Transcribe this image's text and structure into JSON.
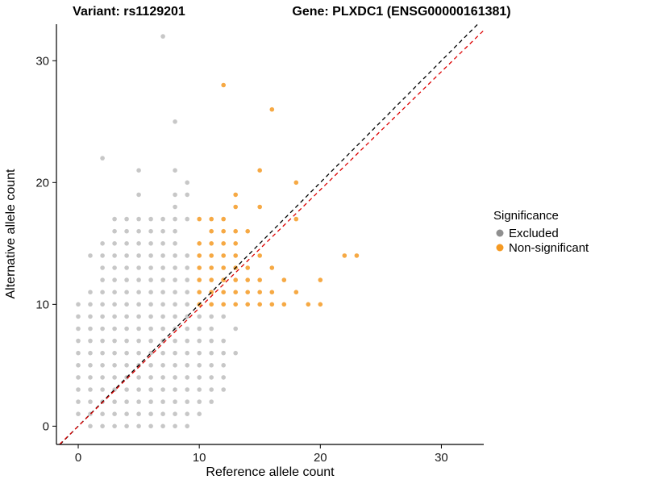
{
  "titles": {
    "variant": "Variant: rs1129201",
    "gene": "Gene: PLXDC1 (ENSG00000161381)"
  },
  "chart_data": {
    "type": "scatter",
    "xlabel": "Reference allele count",
    "ylabel": "Alternative allele count",
    "xlim": [
      -1.8,
      33.5
    ],
    "ylim": [
      -1.5,
      33.0
    ],
    "x_ticks": [
      0,
      10,
      20,
      30
    ],
    "y_ticks": [
      0,
      10,
      20,
      30
    ],
    "grid": false,
    "legend": {
      "title": "Significance",
      "position": "right",
      "items": [
        {
          "label": "Excluded",
          "color": "#8f8f8f"
        },
        {
          "label": "Non-significant",
          "color": "#f59a23"
        }
      ]
    },
    "lines": [
      {
        "name": "identity-line",
        "color": "#000000",
        "slope": 1.0,
        "intercept": 0,
        "dash": "5,4"
      },
      {
        "name": "fit-line",
        "color": "#dd0000",
        "slope": 0.97,
        "intercept": 0,
        "dash": "5,4"
      }
    ],
    "series": [
      {
        "name": "Excluded",
        "color": "#8f8f8f",
        "opacity": 0.5,
        "points": [
          [
            1,
            0
          ],
          [
            2,
            0
          ],
          [
            3,
            0
          ],
          [
            4,
            0
          ],
          [
            5,
            0
          ],
          [
            6,
            0
          ],
          [
            7,
            0
          ],
          [
            8,
            0
          ],
          [
            9,
            0
          ],
          [
            0,
            1
          ],
          [
            1,
            1
          ],
          [
            2,
            1
          ],
          [
            3,
            1
          ],
          [
            4,
            1
          ],
          [
            5,
            1
          ],
          [
            6,
            1
          ],
          [
            7,
            1
          ],
          [
            8,
            1
          ],
          [
            9,
            1
          ],
          [
            10,
            1
          ],
          [
            0,
            2
          ],
          [
            1,
            2
          ],
          [
            2,
            2
          ],
          [
            3,
            2
          ],
          [
            4,
            2
          ],
          [
            5,
            2
          ],
          [
            6,
            2
          ],
          [
            7,
            2
          ],
          [
            8,
            2
          ],
          [
            9,
            2
          ],
          [
            10,
            2
          ],
          [
            11,
            2
          ],
          [
            0,
            3
          ],
          [
            1,
            3
          ],
          [
            2,
            3
          ],
          [
            3,
            3
          ],
          [
            4,
            3
          ],
          [
            5,
            3
          ],
          [
            6,
            3
          ],
          [
            7,
            3
          ],
          [
            8,
            3
          ],
          [
            9,
            3
          ],
          [
            10,
            3
          ],
          [
            11,
            3
          ],
          [
            12,
            3
          ],
          [
            0,
            4
          ],
          [
            1,
            4
          ],
          [
            2,
            4
          ],
          [
            3,
            4
          ],
          [
            4,
            4
          ],
          [
            5,
            4
          ],
          [
            6,
            4
          ],
          [
            7,
            4
          ],
          [
            8,
            4
          ],
          [
            9,
            4
          ],
          [
            10,
            4
          ],
          [
            11,
            4
          ],
          [
            12,
            4
          ],
          [
            0,
            5
          ],
          [
            1,
            5
          ],
          [
            2,
            5
          ],
          [
            3,
            5
          ],
          [
            4,
            5
          ],
          [
            5,
            5
          ],
          [
            6,
            5
          ],
          [
            7,
            5
          ],
          [
            8,
            5
          ],
          [
            9,
            5
          ],
          [
            10,
            5
          ],
          [
            11,
            5
          ],
          [
            12,
            5
          ],
          [
            0,
            6
          ],
          [
            1,
            6
          ],
          [
            2,
            6
          ],
          [
            3,
            6
          ],
          [
            4,
            6
          ],
          [
            5,
            6
          ],
          [
            6,
            6
          ],
          [
            7,
            6
          ],
          [
            8,
            6
          ],
          [
            9,
            6
          ],
          [
            10,
            6
          ],
          [
            11,
            6
          ],
          [
            12,
            6
          ],
          [
            13,
            6
          ],
          [
            0,
            7
          ],
          [
            1,
            7
          ],
          [
            2,
            7
          ],
          [
            3,
            7
          ],
          [
            4,
            7
          ],
          [
            5,
            7
          ],
          [
            6,
            7
          ],
          [
            7,
            7
          ],
          [
            8,
            7
          ],
          [
            9,
            7
          ],
          [
            10,
            7
          ],
          [
            11,
            7
          ],
          [
            12,
            7
          ],
          [
            0,
            8
          ],
          [
            1,
            8
          ],
          [
            2,
            8
          ],
          [
            3,
            8
          ],
          [
            4,
            8
          ],
          [
            5,
            8
          ],
          [
            6,
            8
          ],
          [
            7,
            8
          ],
          [
            8,
            8
          ],
          [
            9,
            8
          ],
          [
            10,
            8
          ],
          [
            11,
            8
          ],
          [
            13,
            8
          ],
          [
            0,
            9
          ],
          [
            1,
            9
          ],
          [
            2,
            9
          ],
          [
            3,
            9
          ],
          [
            4,
            9
          ],
          [
            5,
            9
          ],
          [
            6,
            9
          ],
          [
            7,
            9
          ],
          [
            8,
            9
          ],
          [
            9,
            9
          ],
          [
            10,
            9
          ],
          [
            11,
            9
          ],
          [
            12,
            9
          ],
          [
            0,
            10
          ],
          [
            1,
            10
          ],
          [
            2,
            10
          ],
          [
            3,
            10
          ],
          [
            4,
            10
          ],
          [
            5,
            10
          ],
          [
            6,
            10
          ],
          [
            7,
            10
          ],
          [
            8,
            10
          ],
          [
            9,
            10
          ],
          [
            1,
            11
          ],
          [
            2,
            11
          ],
          [
            3,
            11
          ],
          [
            4,
            11
          ],
          [
            5,
            11
          ],
          [
            6,
            11
          ],
          [
            7,
            11
          ],
          [
            8,
            11
          ],
          [
            9,
            11
          ],
          [
            2,
            12
          ],
          [
            3,
            12
          ],
          [
            4,
            12
          ],
          [
            5,
            12
          ],
          [
            6,
            12
          ],
          [
            7,
            12
          ],
          [
            8,
            12
          ],
          [
            9,
            12
          ],
          [
            2,
            13
          ],
          [
            3,
            13
          ],
          [
            4,
            13
          ],
          [
            5,
            13
          ],
          [
            6,
            13
          ],
          [
            7,
            13
          ],
          [
            8,
            13
          ],
          [
            9,
            13
          ],
          [
            1,
            14
          ],
          [
            2,
            14
          ],
          [
            3,
            14
          ],
          [
            4,
            14
          ],
          [
            5,
            14
          ],
          [
            6,
            14
          ],
          [
            7,
            14
          ],
          [
            8,
            14
          ],
          [
            9,
            14
          ],
          [
            2,
            15
          ],
          [
            3,
            15
          ],
          [
            4,
            15
          ],
          [
            5,
            15
          ],
          [
            6,
            15
          ],
          [
            7,
            15
          ],
          [
            8,
            15
          ],
          [
            3,
            16
          ],
          [
            4,
            16
          ],
          [
            5,
            16
          ],
          [
            6,
            16
          ],
          [
            7,
            16
          ],
          [
            8,
            16
          ],
          [
            3,
            17
          ],
          [
            4,
            17
          ],
          [
            5,
            17
          ],
          [
            6,
            17
          ],
          [
            7,
            17
          ],
          [
            8,
            17
          ],
          [
            9,
            17
          ],
          [
            8,
            18
          ],
          [
            5,
            19
          ],
          [
            8,
            19
          ],
          [
            9,
            19
          ],
          [
            9,
            20
          ],
          [
            5,
            21
          ],
          [
            8,
            21
          ],
          [
            2,
            22
          ],
          [
            8,
            25
          ],
          [
            7,
            32
          ]
        ]
      },
      {
        "name": "Non-significant",
        "color": "#f59a23",
        "opacity": 0.85,
        "points": [
          [
            10,
            10
          ],
          [
            11,
            10
          ],
          [
            12,
            10
          ],
          [
            13,
            10
          ],
          [
            14,
            10
          ],
          [
            15,
            10
          ],
          [
            16,
            10
          ],
          [
            17,
            10
          ],
          [
            19,
            10
          ],
          [
            20,
            10
          ],
          [
            10,
            11
          ],
          [
            11,
            11
          ],
          [
            12,
            11
          ],
          [
            13,
            11
          ],
          [
            14,
            11
          ],
          [
            15,
            11
          ],
          [
            16,
            11
          ],
          [
            18,
            11
          ],
          [
            10,
            12
          ],
          [
            11,
            12
          ],
          [
            12,
            12
          ],
          [
            13,
            12
          ],
          [
            14,
            12
          ],
          [
            15,
            12
          ],
          [
            17,
            12
          ],
          [
            20,
            12
          ],
          [
            10,
            13
          ],
          [
            11,
            13
          ],
          [
            12,
            13
          ],
          [
            13,
            13
          ],
          [
            14,
            13
          ],
          [
            16,
            13
          ],
          [
            10,
            14
          ],
          [
            11,
            14
          ],
          [
            12,
            14
          ],
          [
            13,
            14
          ],
          [
            15,
            14
          ],
          [
            22,
            14
          ],
          [
            23,
            14
          ],
          [
            10,
            15
          ],
          [
            11,
            15
          ],
          [
            12,
            15
          ],
          [
            13,
            15
          ],
          [
            11,
            16
          ],
          [
            12,
            16
          ],
          [
            13,
            16
          ],
          [
            14,
            16
          ],
          [
            10,
            17
          ],
          [
            11,
            17
          ],
          [
            12,
            17
          ],
          [
            18,
            17
          ],
          [
            13,
            18
          ],
          [
            15,
            18
          ],
          [
            13,
            19
          ],
          [
            18,
            20
          ],
          [
            15,
            21
          ],
          [
            16,
            26
          ],
          [
            12,
            28
          ]
        ]
      }
    ]
  }
}
